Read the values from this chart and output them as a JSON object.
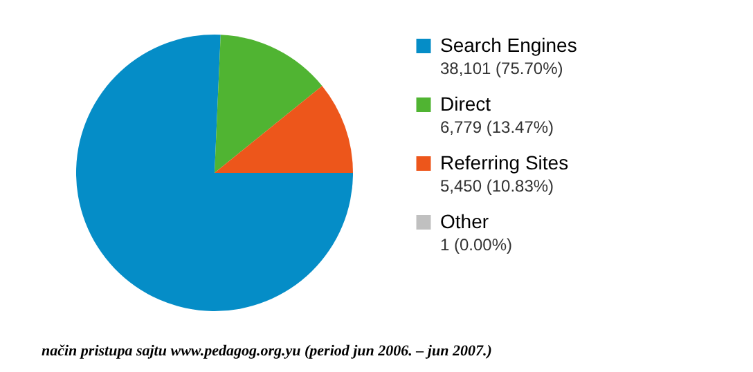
{
  "chart_data": {
    "type": "pie",
    "categories": [
      "Search Engines",
      "Direct",
      "Referring Sites",
      "Other"
    ],
    "values": [
      38101,
      6779,
      5450,
      null
    ],
    "value_labels": [
      "38,101 (75.70%)",
      "6,779 (13.47%)",
      "5,450 (10.83%)",
      "1 (0.00%)"
    ],
    "colors": [
      "#058dc7",
      "#50b432",
      "#ed561b",
      "#c0c0c0"
    ],
    "legend": "right",
    "annotations": [
      "način pristupa sajtu www.pedagog.org.yu (period jun 2006. – jun 2007.)"
    ]
  }
}
